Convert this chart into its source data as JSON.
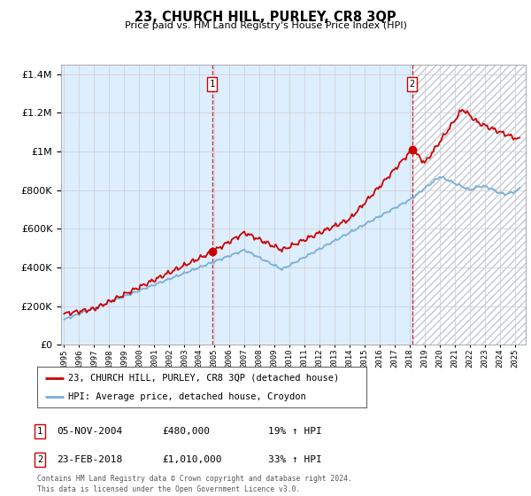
{
  "title": "23, CHURCH HILL, PURLEY, CR8 3QP",
  "subtitle": "Price paid vs. HM Land Registry's House Price Index (HPI)",
  "legend_line1": "23, CHURCH HILL, PURLEY, CR8 3QP (detached house)",
  "legend_line2": "HPI: Average price, detached house, Croydon",
  "annotation1_date": "05-NOV-2004",
  "annotation1_price": "£480,000",
  "annotation1_hpi": "19% ↑ HPI",
  "annotation2_date": "23-FEB-2018",
  "annotation2_price": "£1,010,000",
  "annotation2_hpi": "33% ↑ HPI",
  "footer": "Contains HM Land Registry data © Crown copyright and database right 2024.\nThis data is licensed under the Open Government Licence v3.0.",
  "hpi_color": "#7aafd4",
  "price_color": "#cc0000",
  "background_chart": "#ddeeff",
  "grid_color": "#cccccc",
  "sale1_x": 2004.85,
  "sale1_y": 480000,
  "sale2_x": 2018.15,
  "sale2_y": 1010000,
  "ylim": [
    0,
    1450000
  ],
  "xlim_start": 1994.8,
  "xlim_end": 2025.7
}
